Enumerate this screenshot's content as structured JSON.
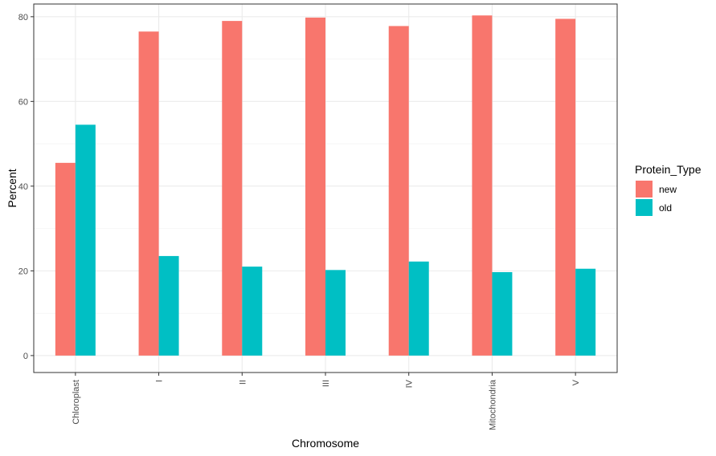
{
  "chart_data": {
    "type": "bar",
    "title": "",
    "xlabel": "Chromosome",
    "ylabel": "Percent",
    "categories": [
      "Chloroplast",
      "I",
      "II",
      "III",
      "IV",
      "Mitochondria",
      "V"
    ],
    "ylim": [
      -4,
      83
    ],
    "yticks": [
      0,
      20,
      40,
      60,
      80
    ],
    "grid": true,
    "legend_position": "right",
    "legend_title": "Protein_Type",
    "series": [
      {
        "name": "new",
        "color": "#F8766D",
        "values": [
          45.5,
          76.5,
          79.0,
          79.8,
          77.8,
          80.3,
          79.5
        ]
      },
      {
        "name": "old",
        "color": "#00BFC4",
        "values": [
          54.5,
          23.5,
          21.0,
          20.2,
          22.2,
          19.7,
          20.5
        ]
      }
    ]
  }
}
